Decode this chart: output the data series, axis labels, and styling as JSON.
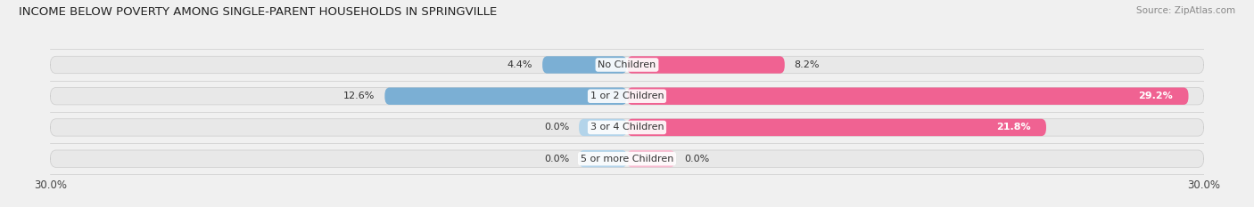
{
  "title": "INCOME BELOW POVERTY AMONG SINGLE-PARENT HOUSEHOLDS IN SPRINGVILLE",
  "source": "Source: ZipAtlas.com",
  "categories": [
    "No Children",
    "1 or 2 Children",
    "3 or 4 Children",
    "5 or more Children"
  ],
  "single_father": [
    4.4,
    12.6,
    0.0,
    0.0
  ],
  "single_mother": [
    8.2,
    29.2,
    21.8,
    0.0
  ],
  "xlim": 30.0,
  "father_color": "#7bafd4",
  "mother_color": "#f06292",
  "father_color_light": "#b3d4ea",
  "mother_color_light": "#f8bbd0",
  "bar_height": 0.55,
  "background_color": "#f0f0f0",
  "bar_bg_color": "#e8e8e8",
  "title_fontsize": 9.5,
  "label_fontsize": 8,
  "tick_fontsize": 8.5,
  "source_fontsize": 7.5,
  "zero_stub": 2.5
}
